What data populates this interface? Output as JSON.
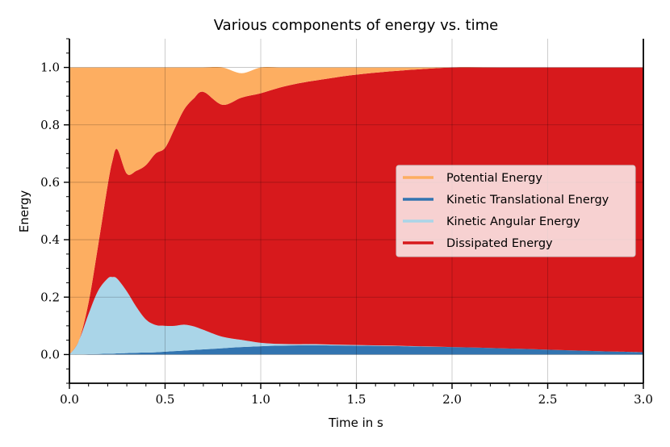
{
  "chart_data": {
    "type": "area",
    "title": "Various components of energy vs. time",
    "xlabel": "Time in s",
    "ylabel": "Energy",
    "xlim": [
      0.0,
      3.0
    ],
    "ylim": [
      -0.1,
      1.1
    ],
    "x_ticks": [
      0.0,
      0.5,
      1.0,
      1.5,
      2.0,
      2.5,
      3.0
    ],
    "x_tick_labels": [
      "0.0",
      "0.5",
      "1.0",
      "1.5",
      "2.0",
      "2.5",
      "3.0"
    ],
    "y_ticks": [
      0.0,
      0.2,
      0.4,
      0.6,
      0.8,
      1.0
    ],
    "y_tick_labels": [
      "0.0",
      "0.2",
      "0.4",
      "0.6",
      "0.8",
      "1.0"
    ],
    "grid": true,
    "stacked": true,
    "legend_position": "center-right",
    "x": [
      0.0,
      0.05,
      0.1,
      0.15,
      0.2,
      0.225,
      0.25,
      0.3,
      0.35,
      0.4,
      0.45,
      0.5,
      0.55,
      0.6,
      0.65,
      0.7,
      0.8,
      0.9,
      1.0,
      1.1,
      1.2,
      1.3,
      1.5,
      1.75,
      2.0,
      2.25,
      2.5,
      2.75,
      3.0
    ],
    "series": [
      {
        "name": "Kinetic Translational Energy",
        "color": "#3274b0",
        "values": [
          0.0,
          0.0,
          0.001,
          0.002,
          0.003,
          0.003,
          0.004,
          0.005,
          0.006,
          0.007,
          0.008,
          0.01,
          0.012,
          0.014,
          0.016,
          0.018,
          0.022,
          0.026,
          0.029,
          0.031,
          0.032,
          0.032,
          0.031,
          0.029,
          0.026,
          0.022,
          0.017,
          0.012,
          0.008
        ]
      },
      {
        "name": "Kinetic Angular Energy",
        "color": "#aad5e8",
        "values": [
          0.0,
          0.05,
          0.14,
          0.22,
          0.262,
          0.267,
          0.26,
          0.215,
          0.16,
          0.115,
          0.095,
          0.09,
          0.088,
          0.09,
          0.082,
          0.068,
          0.04,
          0.025,
          0.012,
          0.006,
          0.004,
          0.004,
          0.002,
          0.001,
          0.0,
          0.0,
          0.0,
          0.0,
          0.0
        ]
      },
      {
        "name": "Dissipated Energy",
        "color": "#d7191c",
        "values": [
          0.0,
          0.0,
          0.04,
          0.158,
          0.325,
          0.405,
          0.451,
          0.41,
          0.474,
          0.538,
          0.597,
          0.62,
          0.687,
          0.75,
          0.794,
          0.829,
          0.808,
          0.844,
          0.869,
          0.893,
          0.909,
          0.92,
          0.942,
          0.96,
          0.974,
          0.978,
          0.983,
          0.988,
          0.992
        ]
      },
      {
        "name": "Potential Energy",
        "color": "#fdae61",
        "values": [
          1.0,
          0.95,
          0.819,
          0.62,
          0.41,
          0.325,
          0.285,
          0.37,
          0.36,
          0.34,
          0.3,
          0.28,
          0.213,
          0.146,
          0.108,
          0.085,
          0.13,
          0.085,
          0.09,
          0.07,
          0.055,
          0.044,
          0.025,
          0.01,
          0.0,
          0.0,
          0.0,
          0.0,
          0.0
        ]
      }
    ],
    "legend_order": [
      "Potential Energy",
      "Kinetic Translational Energy",
      "Kinetic Angular Energy",
      "Dissipated Energy"
    ]
  }
}
